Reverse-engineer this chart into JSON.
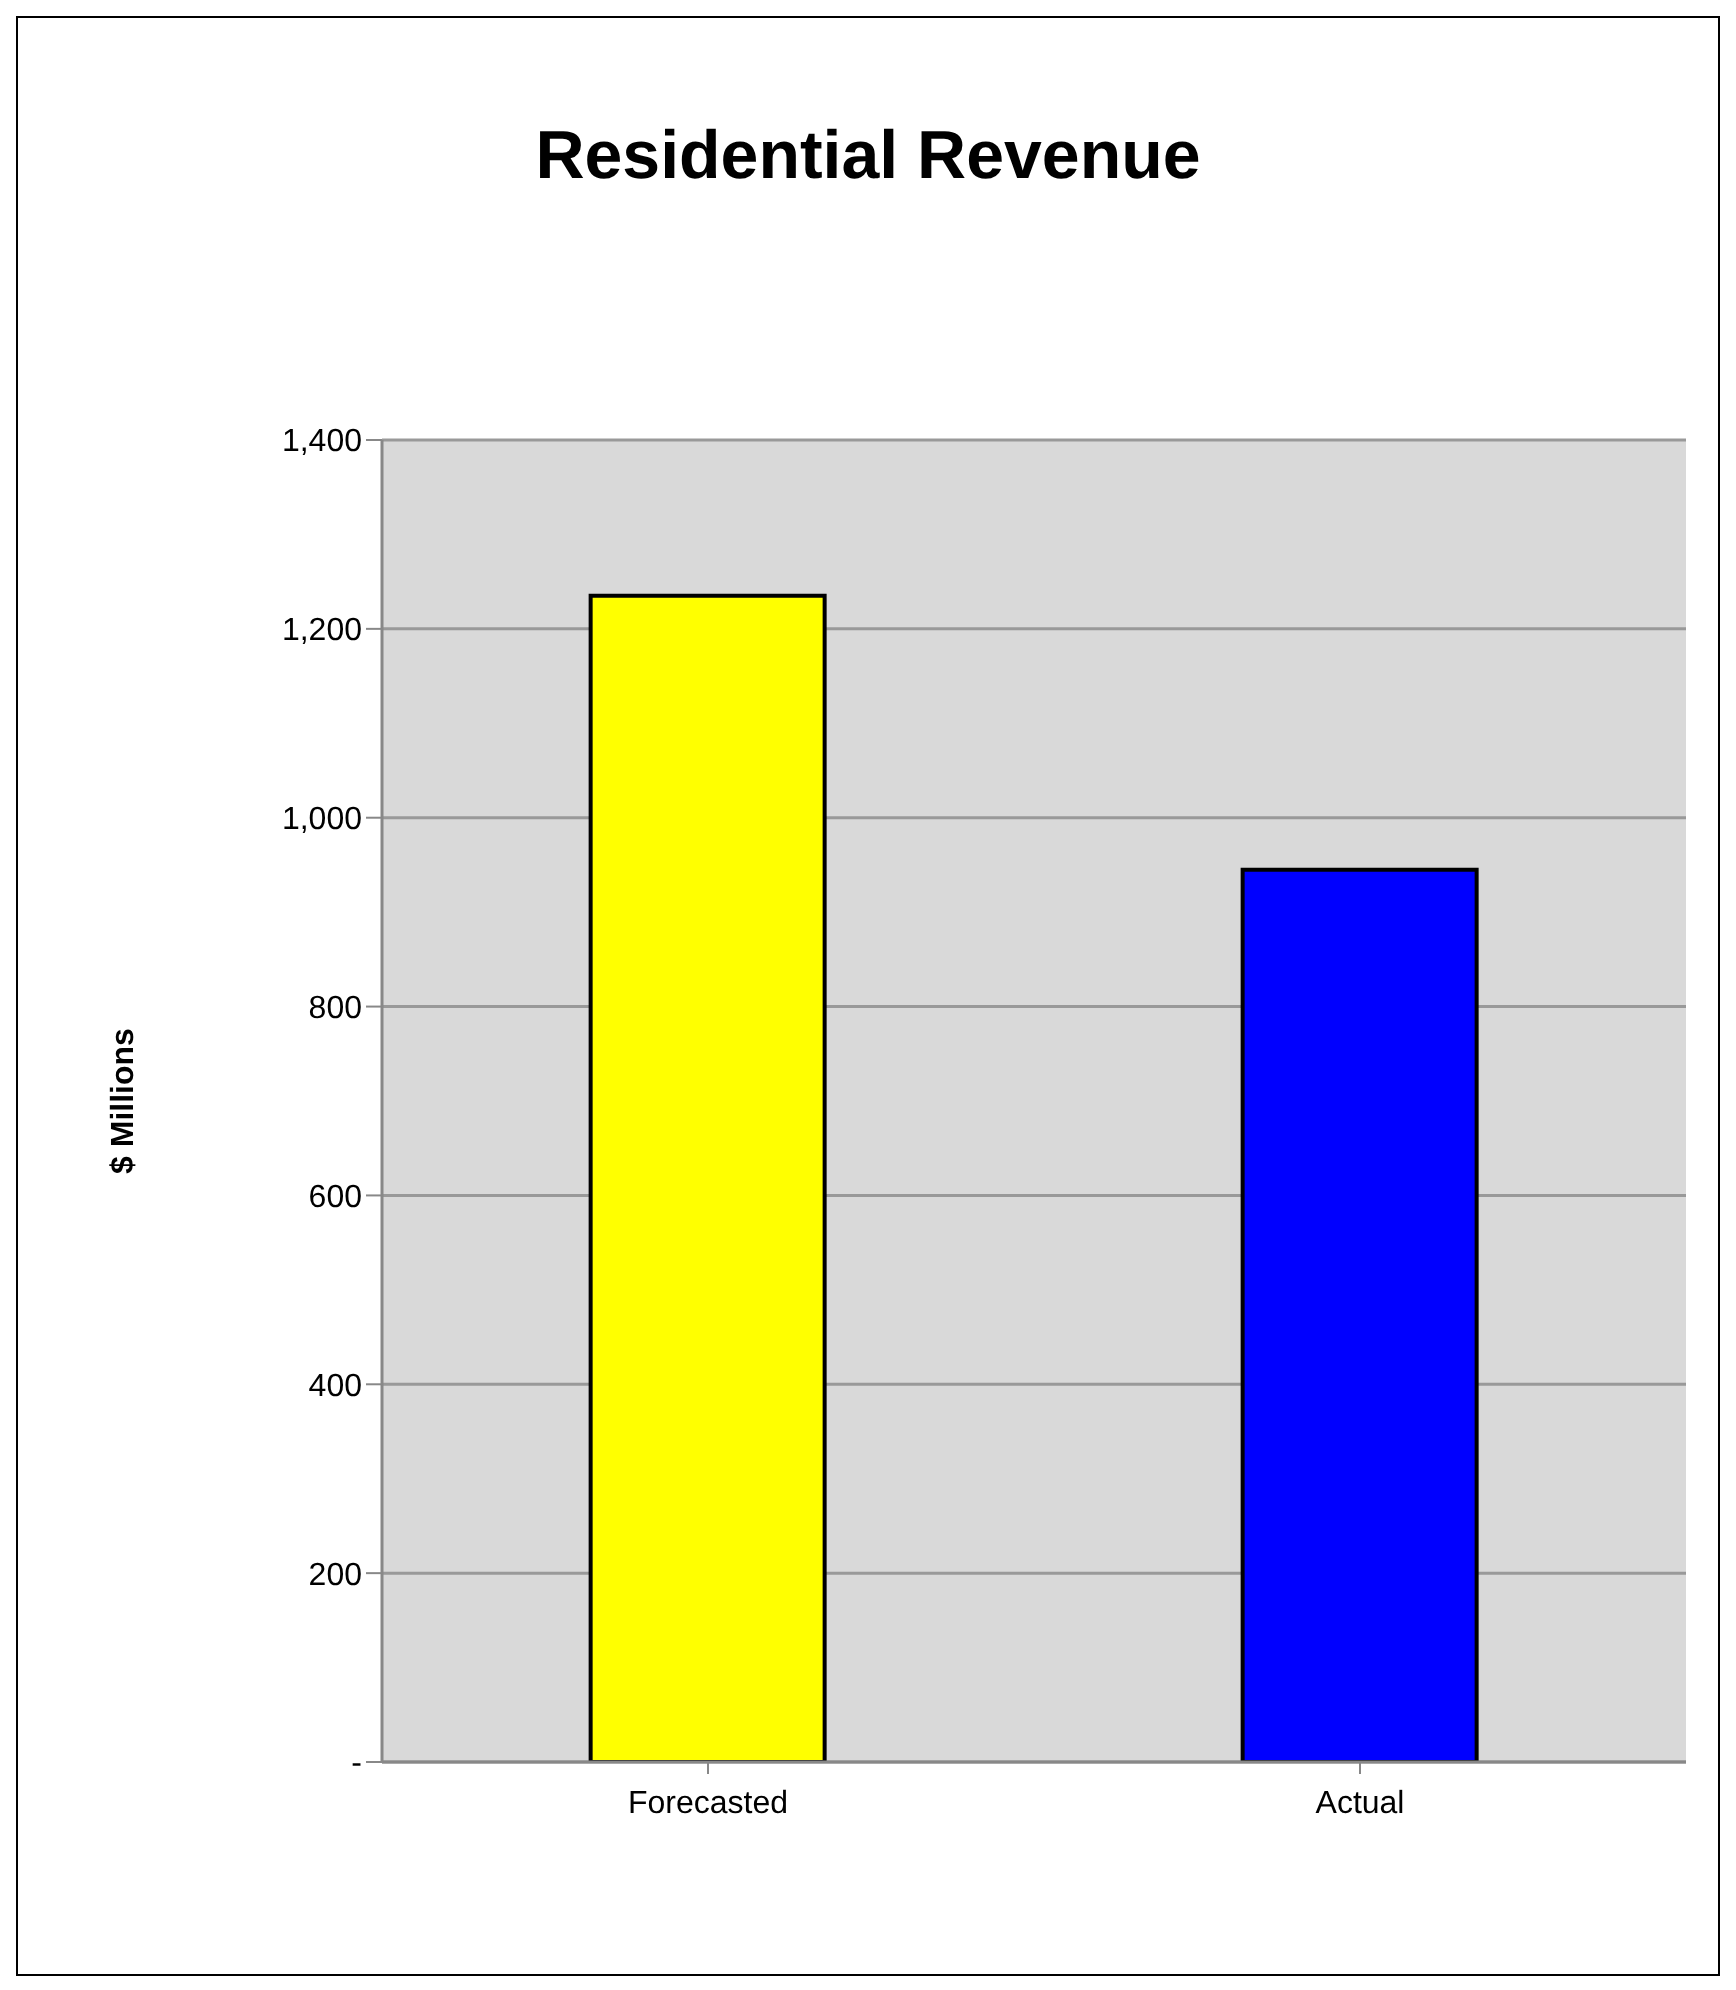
{
  "chart_data": {
    "type": "bar",
    "title": "Residential Revenue",
    "ylabel": "$ Millions",
    "categories": [
      "Forecasted",
      "Actual"
    ],
    "values": [
      1235,
      945
    ],
    "colors": [
      "#ffff00",
      "#0000ff"
    ],
    "ylim": [
      0,
      1400
    ],
    "yticks": [
      {
        "value": 0,
        "label": "-"
      },
      200,
      400,
      600,
      800,
      {
        "value": 1000,
        "label": "1,000"
      },
      {
        "value": 1200,
        "label": "1,200"
      },
      {
        "value": 1400,
        "label": "1,400"
      }
    ],
    "grid": "y"
  }
}
